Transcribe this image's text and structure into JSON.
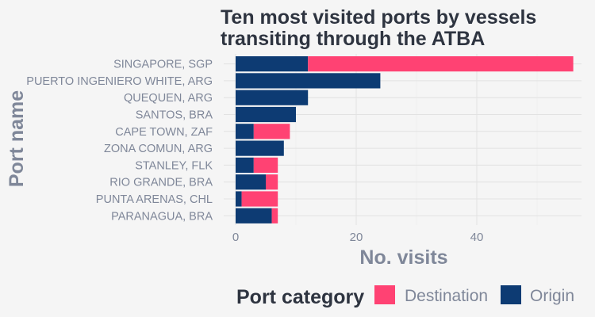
{
  "chart_data": {
    "type": "bar",
    "orientation": "horizontal",
    "stacked": true,
    "title_lines": [
      "Ten most visited ports by vessels",
      "transiting through the ATBA"
    ],
    "xlabel": "No. visits",
    "ylabel": "Port name",
    "xlim": [
      0,
      56
    ],
    "xticks": [
      0,
      20,
      40
    ],
    "grid": true,
    "legend_position": "bottom",
    "legend_title": "Port category",
    "categories": [
      "SINGAPORE, SGP",
      "PUERTO INGENIERO WHITE, ARG",
      "QUEQUEN, ARG",
      "SANTOS, BRA",
      "CAPE TOWN, ZAF",
      "ZONA COMUN, ARG",
      "STANLEY, FLK",
      "RIO GRANDE, BRA",
      "PUNTA ARENAS, CHL",
      "PARANAGUA, BRA"
    ],
    "series": [
      {
        "name": "Origin",
        "color": "#0d3b73",
        "values": [
          12,
          24,
          12,
          10,
          3,
          8,
          3,
          5,
          1,
          6
        ]
      },
      {
        "name": "Destination",
        "color": "#ff4273",
        "values": [
          44,
          0,
          0,
          0,
          6,
          0,
          4,
          2,
          6,
          1
        ]
      }
    ],
    "legend_order": [
      "Destination",
      "Origin"
    ]
  }
}
